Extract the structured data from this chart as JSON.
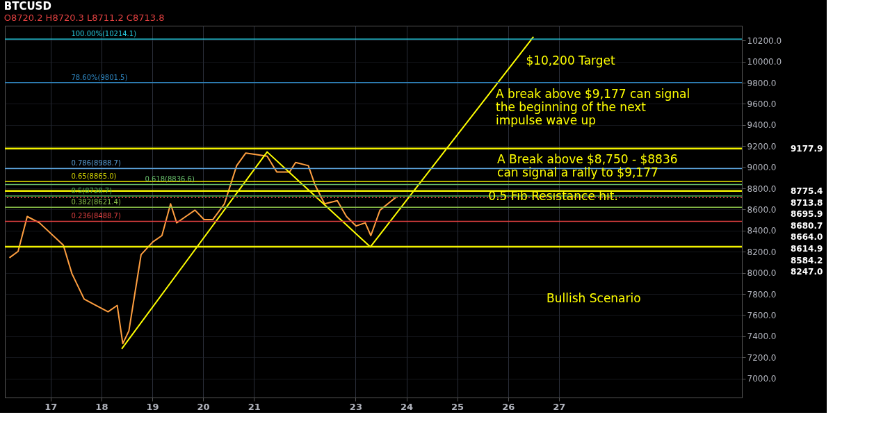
{
  "chart_data": {
    "type": "line",
    "title": "BTCUSD",
    "subtitle": "O8720.2  H8720.3  L8711.2  C8713.8",
    "xlim": [
      16.1,
      30.6
    ],
    "xticks": [
      17,
      18,
      19,
      20,
      21,
      23,
      24,
      25,
      26,
      27
    ],
    "ylim": [
      6820,
      10340
    ],
    "yticks": [
      {
        "value": 7000,
        "label": "7000.0"
      },
      {
        "value": 7200,
        "label": "7200.0"
      },
      {
        "value": 7400,
        "label": "7400.0"
      },
      {
        "value": 7600,
        "label": "7600.0"
      },
      {
        "value": 7800,
        "label": "7800.0"
      },
      {
        "value": 8000,
        "label": "8000.0"
      },
      {
        "value": 8200,
        "label": "8200.0"
      },
      {
        "value": 8400,
        "label": "8400.0"
      },
      {
        "value": 8600,
        "label": "8600.0"
      },
      {
        "value": 8800,
        "label": "8800.0"
      },
      {
        "value": 9000,
        "label": "9000.0"
      },
      {
        "value": 9200,
        "label": "9200.0"
      },
      {
        "value": 9400,
        "label": "9400.0"
      },
      {
        "value": 9600,
        "label": "9600.0"
      },
      {
        "value": 9800,
        "label": "9800.0"
      },
      {
        "value": 10000,
        "label": "10000.0"
      },
      {
        "value": 10200,
        "label": "10200.0"
      }
    ],
    "grid": true,
    "series": [
      {
        "color": "#ff9f40",
        "x": [
          16.19,
          16.36,
          16.54,
          16.78,
          17.25,
          17.42,
          17.66,
          17.89,
          18.13,
          18.31,
          18.42,
          18.54,
          18.66,
          18.78,
          19.01,
          19.19,
          19.36,
          19.48,
          19.66,
          19.84,
          20.02,
          20.19,
          20.42,
          20.66,
          20.84,
          21.01,
          21.26,
          21.45,
          21.7,
          21.82,
          22.07,
          22.2,
          22.39,
          22.64,
          22.82,
          23.01,
          23.19,
          23.3,
          23.48,
          23.71,
          23.79
        ],
        "values": [
          8143,
          8203,
          8534,
          8474,
          8263,
          7992,
          7752,
          7692,
          7632,
          7692,
          7331,
          7451,
          7812,
          8173,
          8293,
          8353,
          8654,
          8474,
          8534,
          8594,
          8504,
          8504,
          8654,
          9015,
          9135,
          9123,
          9105,
          8955,
          8955,
          9045,
          9015,
          8835,
          8654,
          8684,
          8534,
          8444,
          8474,
          8353,
          8594,
          8684,
          8714
        ]
      },
      {
        "type": "line",
        "color": "#ffff00",
        "x": [
          18.4,
          21.26,
          23.29,
          26.5
        ],
        "values": [
          7281,
          9145,
          8246,
          10236
        ]
      }
    ],
    "ref_lines": [
      {
        "axis": "y",
        "value": 10214.1,
        "label": "100.00%(10214.1)",
        "color": "#26c6da"
      },
      {
        "axis": "y",
        "value": 9801.5,
        "label": "78.60%(9801.5)",
        "color": "#2f86c0"
      },
      {
        "axis": "y",
        "value": 8988.7,
        "label": "0.786(8988.7)",
        "color": "#5aa0d8"
      },
      {
        "axis": "y",
        "value": 8865.0,
        "label": "0.65(8865.0)",
        "color": "#d4d400"
      },
      {
        "axis": "y",
        "value": 8836.6,
        "label": "0.618(8836.6)",
        "color": "#66bb6a"
      },
      {
        "axis": "y",
        "value": 8728.7,
        "label": "0.5(8728.7)",
        "color": "#4caf50"
      },
      {
        "axis": "y",
        "value": 8621.4,
        "label": "0.382(8621.4)",
        "color": "#8bc34a"
      },
      {
        "axis": "y",
        "value": 8488.7,
        "label": "0.236(8488.7)",
        "color": "#e04040"
      },
      {
        "axis": "y",
        "value": 8713.8,
        "color": "#e04040",
        "line_style": "dotted"
      },
      {
        "axis": "y",
        "value": 9177.9,
        "color": "#f2f200"
      },
      {
        "axis": "y",
        "value": 8775.4,
        "color": "#f2f200"
      },
      {
        "axis": "y",
        "value": 8247.0,
        "color": "#f2f200"
      }
    ],
    "annotations": [
      "$10,200 Target",
      "A break above $9,177 can signal\nthe beginning of the next\nimpulse wave up",
      "A Break above $8,750  - $8836\ncan signal  a rally to $9,177",
      "0.5 Fib Resistance hit.",
      "Bullish Scenario",
      "9177.9",
      "8775.4",
      "8713.8",
      "8695.9",
      "8680.7",
      "8664.0",
      "8614.9",
      "8584.2",
      "8247.0"
    ]
  }
}
